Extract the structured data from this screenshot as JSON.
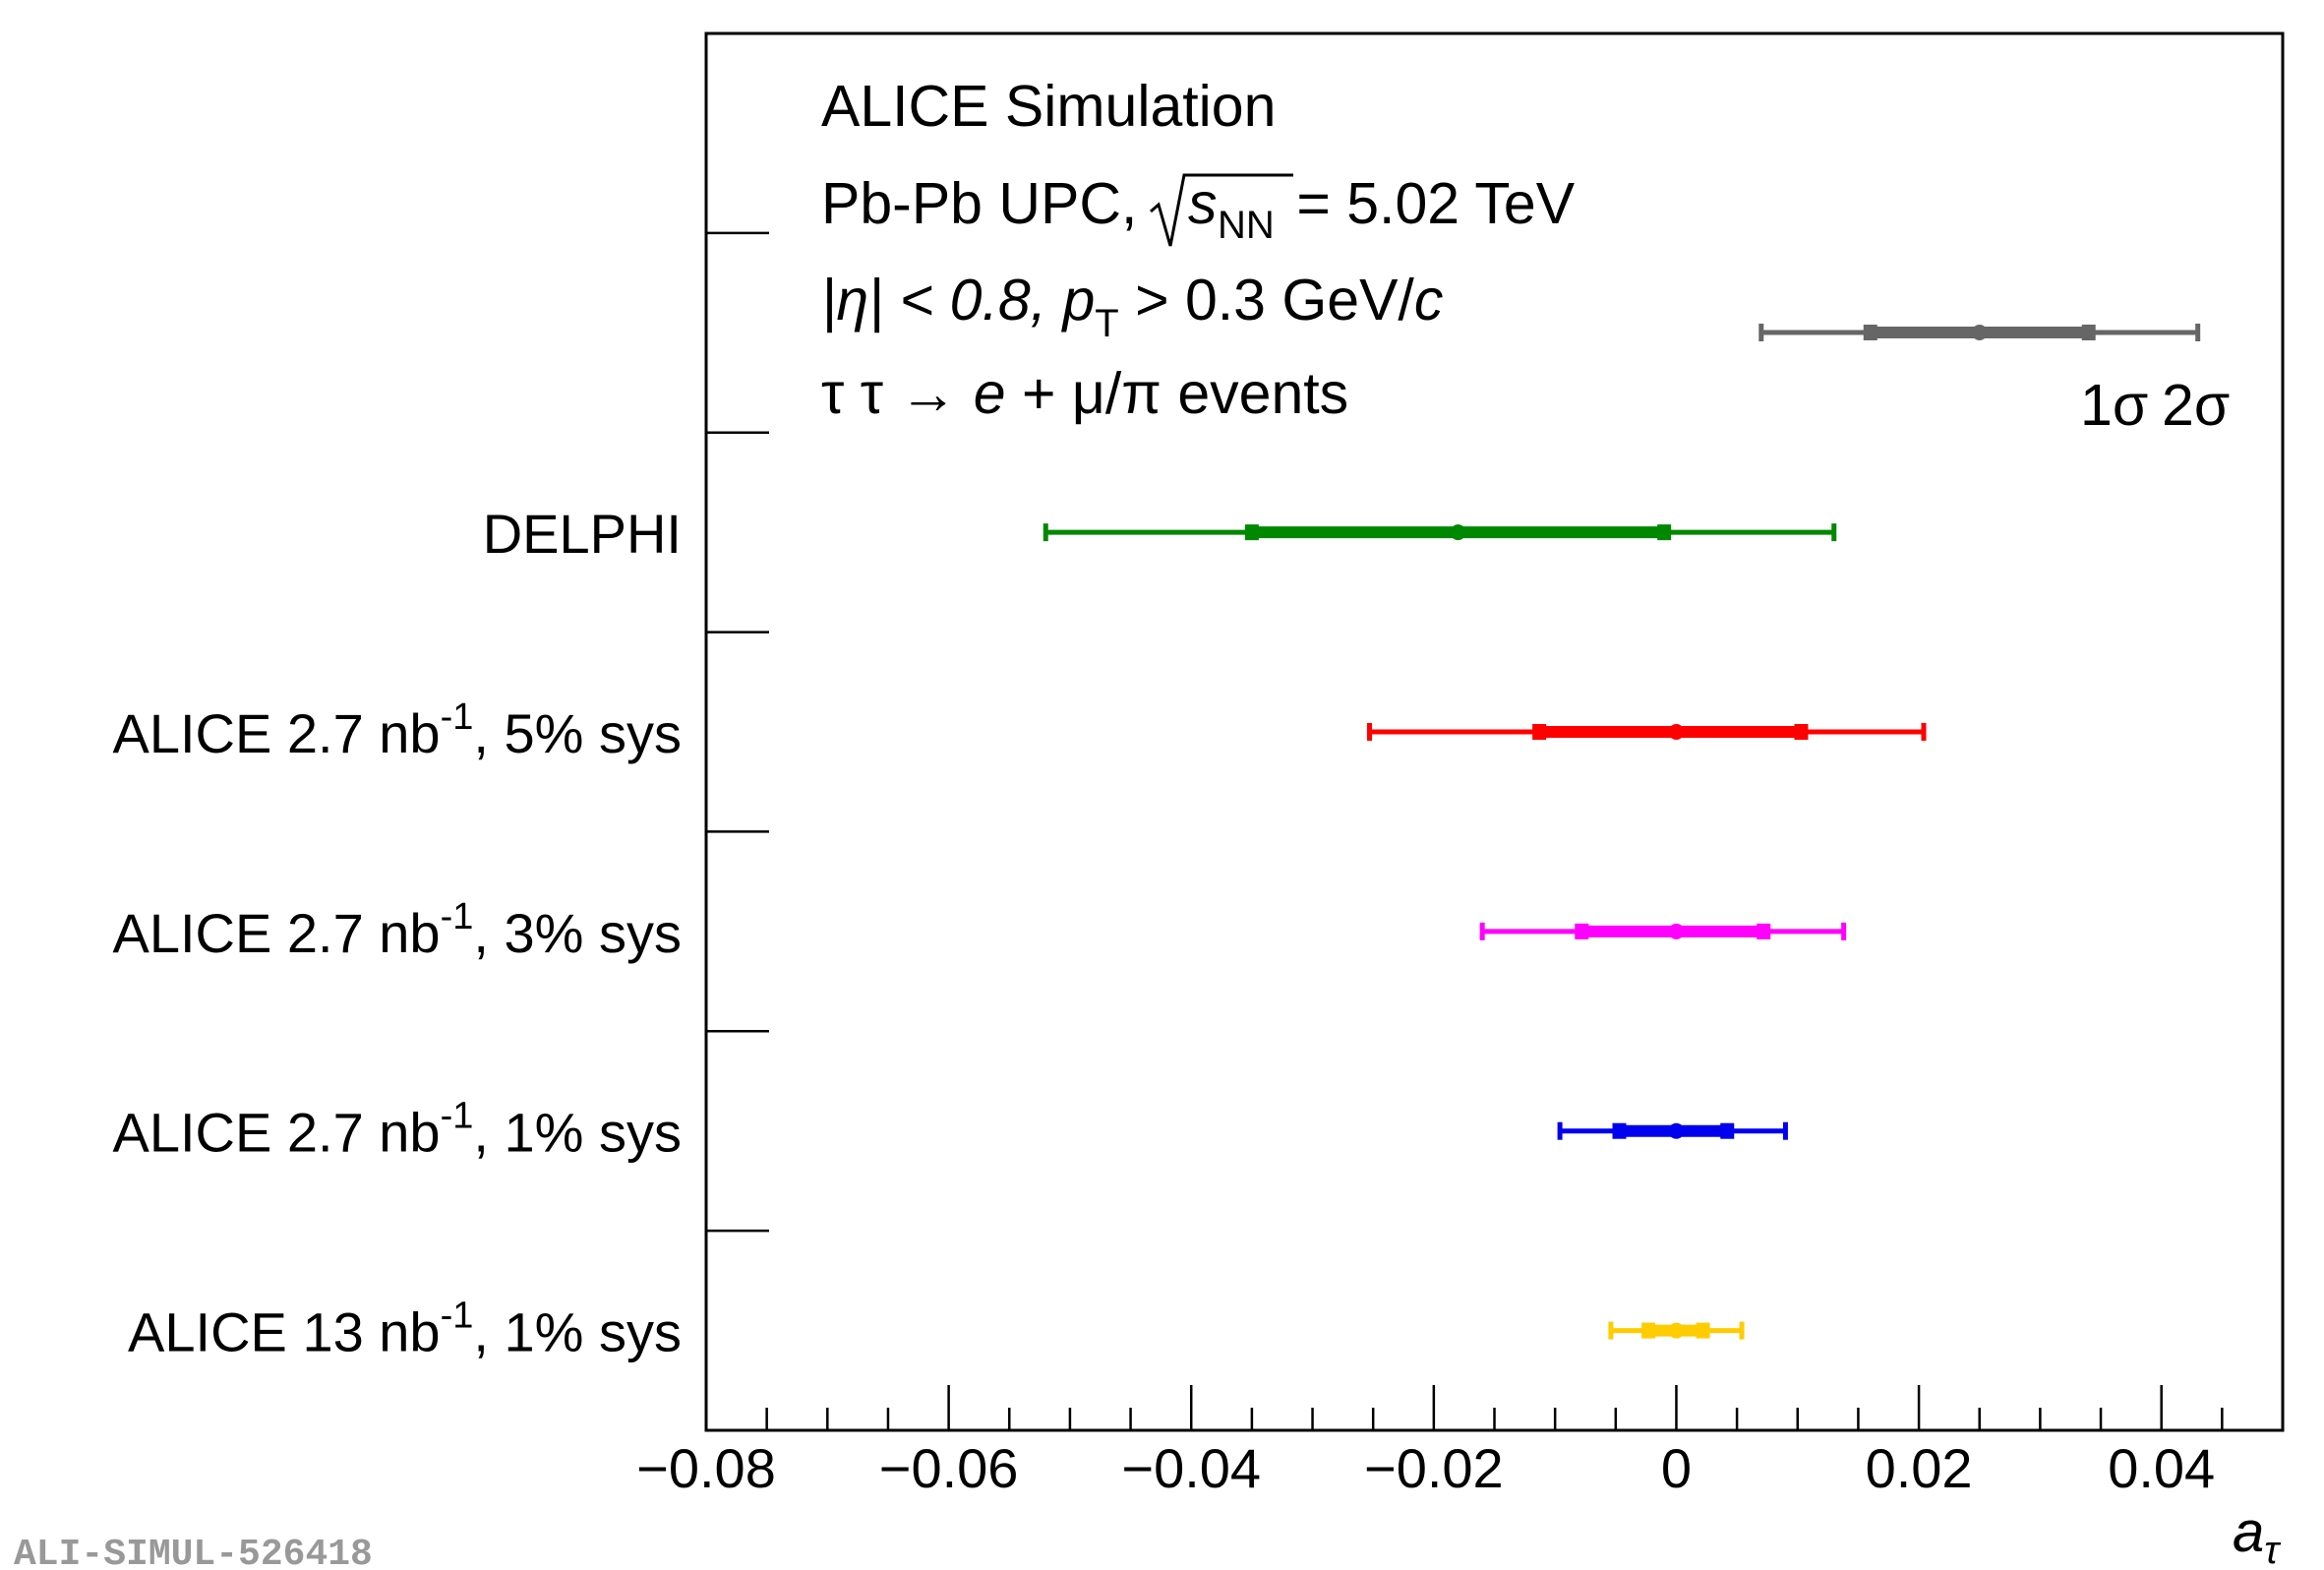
{
  "chart_data": {
    "type": "errorbar",
    "orientation": "horizontal",
    "x": [
      0.025,
      -0.018,
      0.0,
      0.0,
      0.0,
      0.0
    ],
    "x_axis": {
      "label": "a",
      "label_subscript": "τ",
      "range": [
        -0.08,
        0.05
      ],
      "ticks": [
        -0.08,
        -0.06,
        -0.04,
        -0.02,
        0,
        0.02,
        0.04
      ],
      "tick_labels": [
        "−0.08",
        "−0.06",
        "−0.04",
        "−0.02",
        "0",
        "0.02",
        "0.04"
      ]
    },
    "annotations": {
      "title": "ALICE Simulation",
      "line2": {
        "prefix": "Pb-Pb UPC, ",
        "sqrt_s": "s",
        "sqrt_sub": "NN",
        "suffix": " = 5.02 TeV"
      },
      "line3": {
        "eta": "|η| < 0.8, ",
        "p": "p",
        "p_sub": "T",
        "rest": " > 0.3 GeV/",
        "c": "c"
      },
      "line4": {
        "pre": "τ τ → ",
        "e": "e",
        "post": " + μ/π events"
      }
    },
    "legend": {
      "center": 0.025,
      "sigma1": [
        0.016,
        0.034
      ],
      "sigma2": [
        0.007,
        0.043
      ],
      "label_1sigma": "1σ",
      "label_2sigma": "2σ",
      "color": "#666666"
    },
    "series": [
      {
        "name": "DELPHI",
        "label_main": "DELPHI",
        "label_sup": "",
        "label_tail": "",
        "color": "#008800",
        "center": -0.018,
        "sigma1": [
          -0.035,
          -0.001
        ],
        "sigma2": [
          -0.052,
          0.013
        ]
      },
      {
        "name": "ALICE 2.7 nb-1, 5% sys",
        "label_main": "ALICE 2.7 nb",
        "label_sup": "-1",
        "label_tail": ", 5% sys",
        "color": "#ff0000",
        "center": 0.0,
        "sigma1": [
          -0.0113,
          0.0103
        ],
        "sigma2": [
          -0.0253,
          0.0204
        ]
      },
      {
        "name": "ALICE 2.7 nb-1, 3% sys",
        "label_main": "ALICE 2.7 nb",
        "label_sup": "-1",
        "label_tail": ", 3% sys",
        "color": "#ff00ff",
        "center": 0.0,
        "sigma1": [
          -0.0078,
          0.0072
        ],
        "sigma2": [
          -0.016,
          0.0138
        ]
      },
      {
        "name": "ALICE 2.7 nb-1, 1% sys",
        "label_main": "ALICE 2.7 nb",
        "label_sup": "-1",
        "label_tail": ", 1% sys",
        "color": "#0000ee",
        "center": 0.0,
        "sigma1": [
          -0.0047,
          0.0042
        ],
        "sigma2": [
          -0.0096,
          0.009
        ]
      },
      {
        "name": "ALICE 13 nb-1, 1% sys",
        "label_main": "ALICE 13 nb",
        "label_sup": "-1",
        "label_tail": ", 1% sys",
        "color": "#ffcc00",
        "center": 0.0,
        "sigma1": [
          -0.0023,
          0.0022
        ],
        "sigma2": [
          -0.0054,
          0.0054
        ]
      }
    ]
  },
  "watermark": "ALI-SIMUL-526418"
}
